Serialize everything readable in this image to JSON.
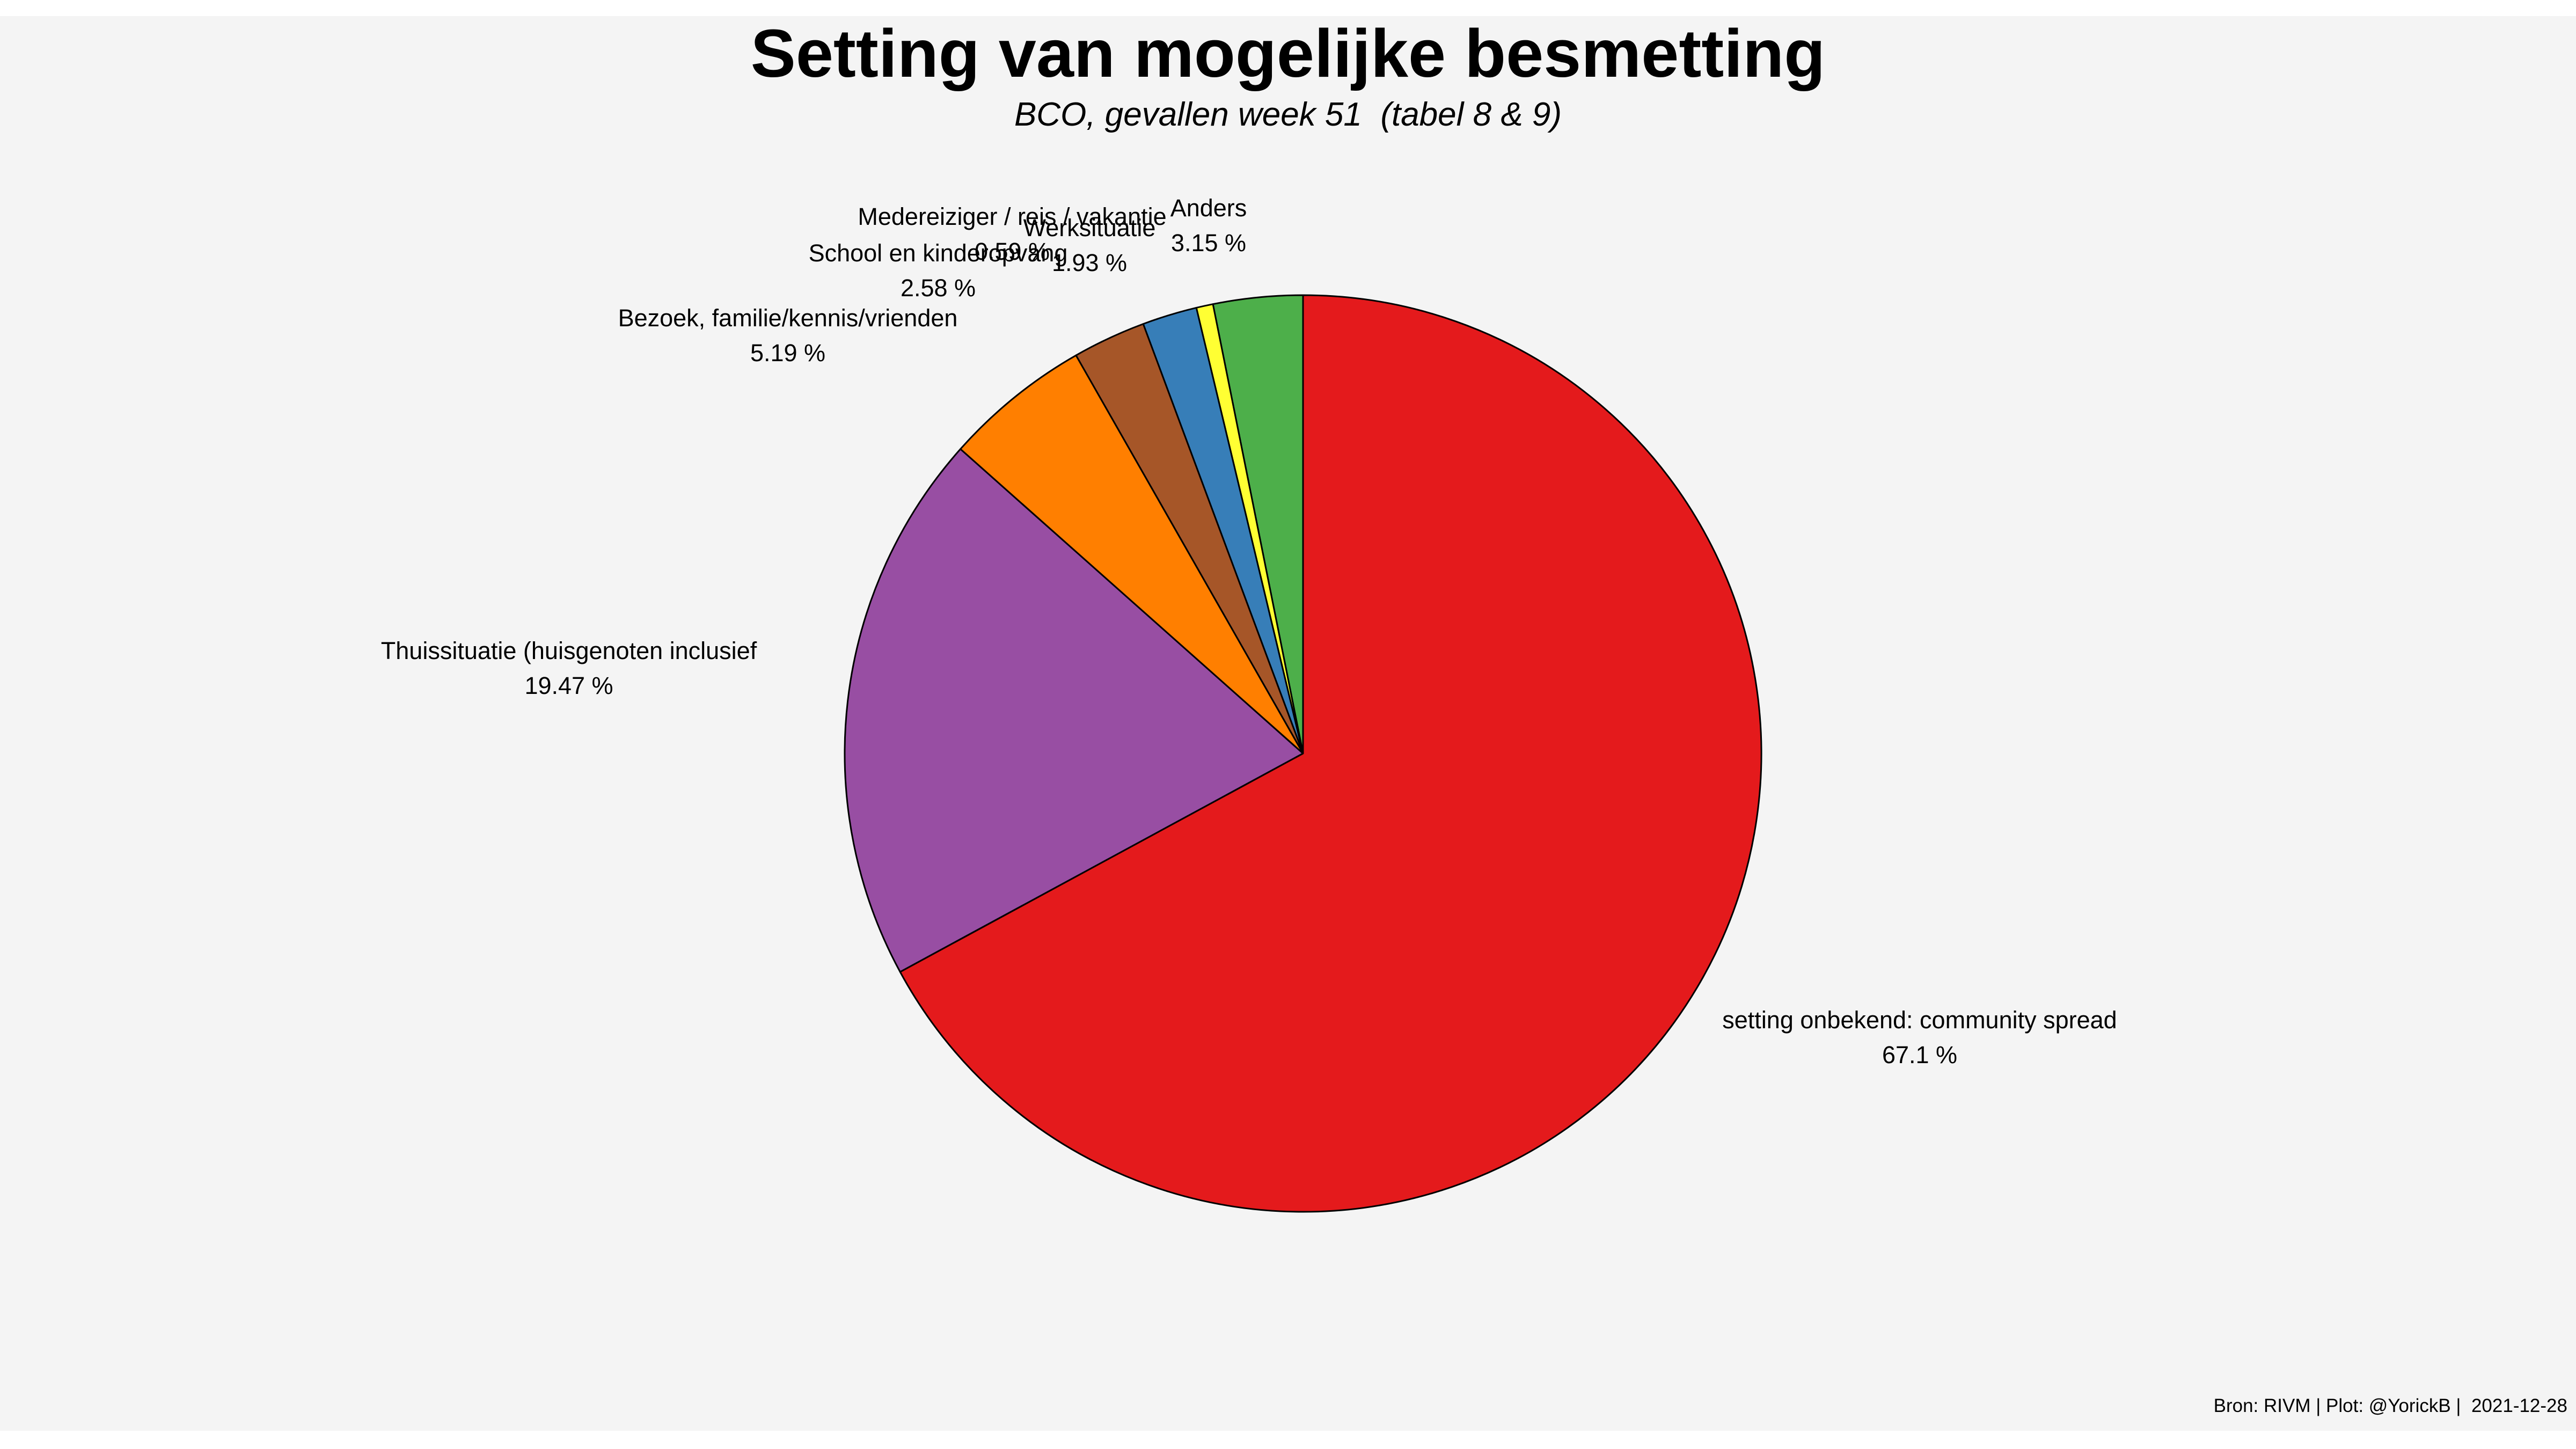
{
  "chart_data": {
    "type": "pie",
    "title": "Setting van mogelijke besmetting",
    "subtitle": "BCO, gevallen week 51  (tabel 8 & 9)",
    "caption": "Bron: RIVM | Plot: @YorickB |  2021-12-28",
    "start_angle": "12 o'clock",
    "direction": "counterclockwise",
    "slices": [
      {
        "label": "Anders",
        "value": 3.15,
        "value_label": "3.15 %",
        "color": "#4DAF4A"
      },
      {
        "label": "Medereiziger / reis / vakantie",
        "value": 0.59,
        "value_label": "0.59 %",
        "color": "#FFFF33"
      },
      {
        "label": "Werksituatie",
        "value": 1.93,
        "value_label": "1.93 %",
        "color": "#377EB8"
      },
      {
        "label": "School en kinderopvang",
        "value": 2.58,
        "value_label": "2.58 %",
        "color": "#A65628"
      },
      {
        "label": "Bezoek, familie/kennis/vrienden",
        "value": 5.19,
        "value_label": "5.19 %",
        "color": "#FF7F00"
      },
      {
        "label": "Thuissituatie (huisgenoten inclusief",
        "value": 19.47,
        "value_label": "19.47 %",
        "color": "#984EA3"
      },
      {
        "label": "setting onbekend: community spread",
        "value": 67.1,
        "value_label": "67.1 %",
        "color": "#E41A1C"
      }
    ]
  }
}
